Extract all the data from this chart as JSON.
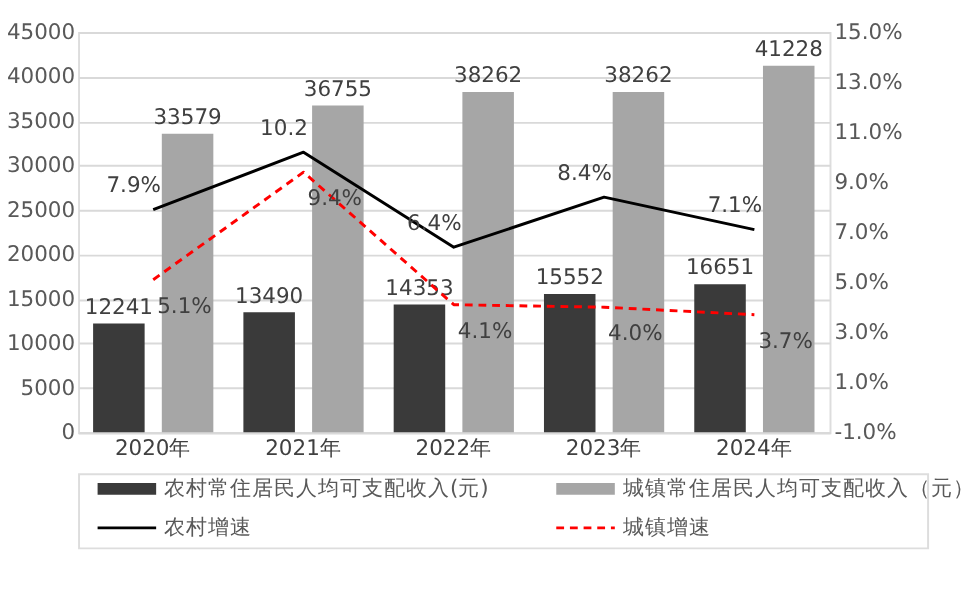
{
  "chart_data": {
    "type": "bar",
    "categories": [
      "2020年",
      "2021年",
      "2022年",
      "2023年",
      "2024年"
    ],
    "series": [
      {
        "name": "农村常住居民人均可支配收入(元)",
        "color": "#3a3a3a",
        "values": [
          12241,
          13490,
          14353,
          15552,
          16651
        ],
        "value_labels": [
          "12241",
          "13490",
          "14353",
          "15552",
          "16651"
        ]
      },
      {
        "name": "城镇常住居民人均可支配收入（元）",
        "color": "#a6a6a6",
        "values": [
          33579,
          36755,
          38262,
          38262,
          41228
        ],
        "value_labels": [
          "33579",
          "36755",
          "38262",
          "38262",
          "41228"
        ]
      },
      {
        "name": "农村增速",
        "type": "line",
        "axis": "y2",
        "color": "#000000",
        "line_style": "solid",
        "values": [
          7.9,
          10.2,
          6.4,
          8.4,
          7.1
        ],
        "value_labels": [
          "7.9%",
          "10.2",
          "6.4%",
          "8.4%",
          "7.1%"
        ]
      },
      {
        "name": "城镇增速",
        "type": "line",
        "axis": "y2",
        "color": "#ff0000",
        "line_style": "dashed",
        "values": [
          5.1,
          9.4,
          4.1,
          4.0,
          3.7
        ],
        "value_labels": [
          "5.1%",
          "9.4%",
          "4.1%",
          "4.0%",
          "3.7%"
        ]
      }
    ],
    "ylim": [
      0,
      45000
    ],
    "yticks": [
      0,
      5000,
      10000,
      15000,
      20000,
      25000,
      30000,
      35000,
      40000,
      45000
    ],
    "y2lim": [
      -1,
      15
    ],
    "y2ticks": [
      {
        "value": -1,
        "label": "-1.0%"
      },
      {
        "value": 1,
        "label": "1.0%"
      },
      {
        "value": 3,
        "label": "3.0%"
      },
      {
        "value": 5,
        "label": "5.0%"
      },
      {
        "value": 7,
        "label": "7.0%"
      },
      {
        "value": 9,
        "label": "9.0%"
      },
      {
        "value": 11,
        "label": "11.0%"
      },
      {
        "value": 13,
        "label": "13.0%"
      },
      {
        "value": 15,
        "label": "15.0%"
      }
    ],
    "grid": "y",
    "legend": "bottom",
    "marker": "none"
  }
}
